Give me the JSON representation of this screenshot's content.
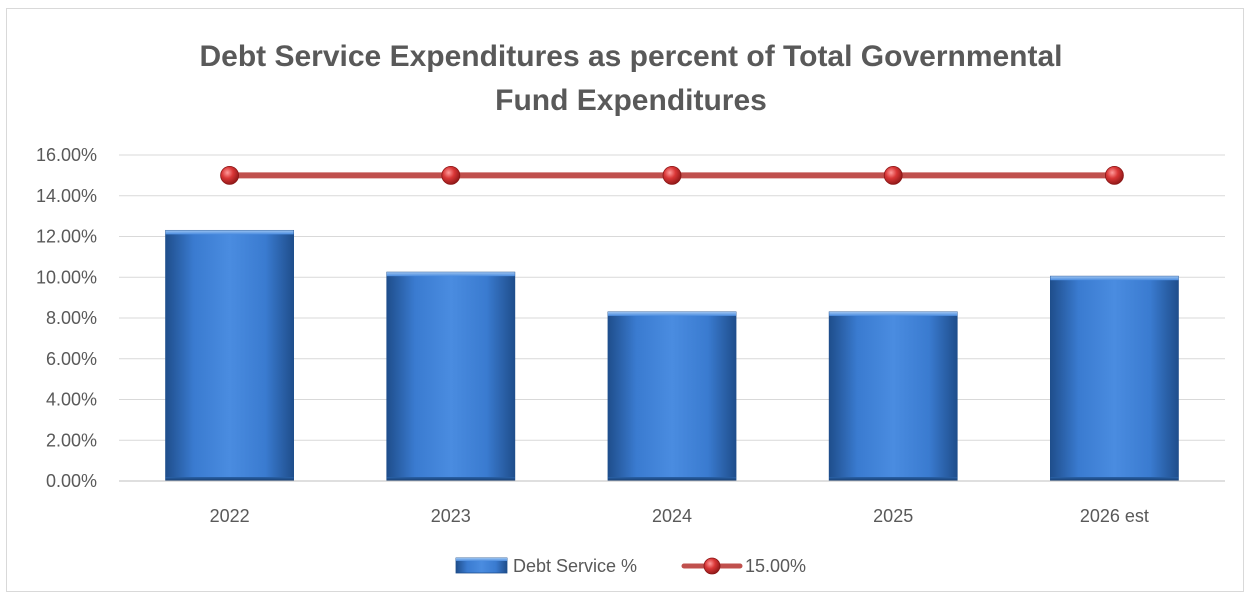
{
  "chart_data": {
    "type": "bar",
    "title_lines": [
      "Debt Service Expenditures as percent of Total Governmental",
      "Fund Expenditures"
    ],
    "categories": [
      "2022",
      "2023",
      "2024",
      "2025",
      "2026 est"
    ],
    "series": [
      {
        "name": "Debt Service %",
        "type": "bar",
        "values": [
          12.3,
          10.25,
          8.3,
          8.3,
          10.05
        ],
        "color": "#2e75b6"
      },
      {
        "name": "15.00%",
        "type": "line",
        "values": [
          15,
          15,
          15,
          15,
          15
        ],
        "color": "#c0504d"
      }
    ],
    "ylim": [
      0,
      16
    ],
    "y_ticks": [
      0,
      2,
      4,
      6,
      8,
      10,
      12,
      14,
      16
    ],
    "y_tick_labels": [
      "0.00%",
      "2.00%",
      "4.00%",
      "6.00%",
      "8.00%",
      "10.00%",
      "12.00%",
      "14.00%",
      "16.00%"
    ],
    "xlabel": "",
    "ylabel": "",
    "grid": true,
    "legend_position": "bottom"
  }
}
